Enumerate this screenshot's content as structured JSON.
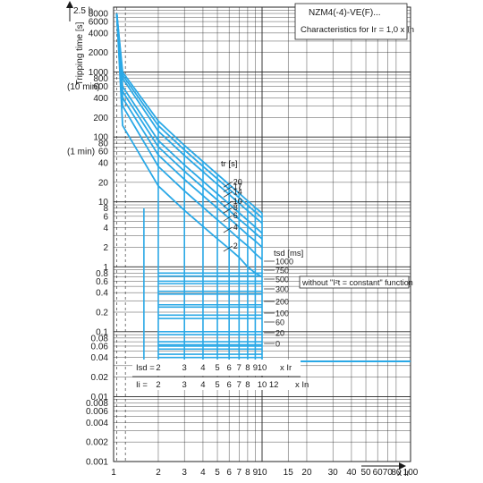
{
  "colors": {
    "curve": "#2aa8e6",
    "grid": "#222222",
    "background": "#ffffff",
    "text": "#1a1a1a"
  },
  "chart_data": {
    "type": "line",
    "title": "NZM4(-4)-VE(F)...",
    "subtitle": "Characteristics for Ir = 1,0 x In",
    "ylabel": "Tripping time [s]",
    "xlabel": "x Ir",
    "x_scale": "log",
    "y_scale": "log",
    "xlim": [
      1,
      100
    ],
    "ylim": [
      0.001,
      10000
    ],
    "grid": true,
    "x_ticks": [
      1,
      2,
      3,
      4,
      5,
      6,
      7,
      8,
      9,
      10,
      15,
      20,
      30,
      40,
      50,
      60,
      70,
      80,
      100
    ],
    "y_ticks": [
      0.001,
      0.002,
      0.004,
      0.006,
      0.008,
      0.01,
      0.02,
      0.04,
      0.06,
      0.08,
      0.1,
      0.2,
      0.4,
      0.6,
      0.8,
      1,
      2,
      4,
      6,
      8,
      10,
      20,
      40,
      60,
      80,
      100,
      200,
      400,
      600,
      800,
      1000,
      2000,
      4000,
      6000,
      8000
    ],
    "y_marks": [
      {
        "value": 9000,
        "label": "2.5 h"
      },
      {
        "value": 600,
        "label": "(10 min)"
      },
      {
        "value": 60,
        "label": "(1 min)"
      }
    ],
    "tr_label": "tr [s]",
    "tr_values": [
      20,
      17,
      14,
      10,
      8,
      6,
      4,
      2
    ],
    "overload_curves": [
      {
        "tr": 20,
        "points": [
          [
            1.05,
            8000
          ],
          [
            1.15,
            1000
          ],
          [
            2,
            176
          ],
          [
            3,
            74.1
          ],
          [
            4,
            41.7
          ],
          [
            5,
            26.7
          ],
          [
            6,
            18.5
          ],
          [
            7,
            13.6
          ],
          [
            8,
            10.4
          ],
          [
            9,
            8.2
          ],
          [
            10,
            6.7
          ]
        ]
      },
      {
        "tr": 17,
        "points": [
          [
            1.05,
            8000
          ],
          [
            1.15,
            900
          ],
          [
            2,
            150
          ],
          [
            3,
            63
          ],
          [
            4,
            35.4
          ],
          [
            5,
            22.7
          ],
          [
            6,
            15.7
          ],
          [
            7,
            11.6
          ],
          [
            8,
            8.9
          ],
          [
            9,
            7.0
          ],
          [
            10,
            5.7
          ]
        ]
      },
      {
        "tr": 14,
        "points": [
          [
            1.05,
            8000
          ],
          [
            1.15,
            800
          ],
          [
            2,
            123
          ],
          [
            3,
            51.9
          ],
          [
            4,
            29.2
          ],
          [
            5,
            18.7
          ],
          [
            6,
            13
          ],
          [
            7,
            9.5
          ],
          [
            8,
            7.3
          ],
          [
            9,
            5.8
          ],
          [
            10,
            4.7
          ]
        ]
      },
      {
        "tr": 10,
        "points": [
          [
            1.05,
            8000
          ],
          [
            1.15,
            600
          ],
          [
            2,
            88
          ],
          [
            3,
            37
          ],
          [
            4,
            20.8
          ],
          [
            5,
            13.3
          ],
          [
            6,
            9.3
          ],
          [
            7,
            6.8
          ],
          [
            8,
            5.2
          ],
          [
            9,
            4.1
          ],
          [
            10,
            3.3
          ]
        ]
      },
      {
        "tr": 8,
        "points": [
          [
            1.05,
            8000
          ],
          [
            1.15,
            500
          ],
          [
            2,
            70.4
          ],
          [
            3,
            29.6
          ],
          [
            4,
            16.7
          ],
          [
            5,
            10.7
          ],
          [
            6,
            7.4
          ],
          [
            7,
            5.4
          ],
          [
            8,
            4.2
          ],
          [
            9,
            3.3
          ],
          [
            10,
            2.7
          ]
        ]
      },
      {
        "tr": 6,
        "points": [
          [
            1.05,
            8000
          ],
          [
            1.15,
            400
          ],
          [
            2,
            52.8
          ],
          [
            3,
            22.2
          ],
          [
            4,
            12.5
          ],
          [
            5,
            8.0
          ],
          [
            6,
            5.6
          ],
          [
            7,
            4.1
          ],
          [
            8,
            3.1
          ],
          [
            9,
            2.5
          ],
          [
            10,
            2.0
          ]
        ]
      },
      {
        "tr": 4,
        "points": [
          [
            1.05,
            8000
          ],
          [
            1.15,
            300
          ],
          [
            2,
            35.2
          ],
          [
            3,
            14.8
          ],
          [
            4,
            8.3
          ],
          [
            5,
            5.3
          ],
          [
            6,
            3.7
          ],
          [
            7,
            2.7
          ],
          [
            8,
            2.1
          ],
          [
            9,
            1.6
          ],
          [
            10,
            1.3
          ]
        ]
      },
      {
        "tr": 2,
        "points": [
          [
            1.05,
            8000
          ],
          [
            1.15,
            150
          ],
          [
            2,
            17.6
          ],
          [
            3,
            7.4
          ],
          [
            4,
            4.2
          ],
          [
            5,
            2.7
          ],
          [
            6,
            1.9
          ],
          [
            7,
            1.4
          ],
          [
            8,
            1.0
          ],
          [
            9,
            0.8
          ],
          [
            10,
            0.7
          ]
        ]
      }
    ],
    "tsd_label": "tsd [ms]",
    "tsd_values": [
      1000,
      750,
      500,
      300,
      200,
      100,
      60,
      20,
      0
    ],
    "tsd_times_s": [
      1.0,
      0.75,
      0.5,
      0.3,
      0.2,
      0.1,
      0.06,
      0.02,
      0.0
    ],
    "tsd_bands": [
      {
        "label": "1000",
        "upper": 0.8,
        "lower": 0.72
      },
      {
        "label": "750",
        "upper": 0.6,
        "lower": 0.55
      },
      {
        "label": "500",
        "upper": 0.42,
        "lower": 0.38
      },
      {
        "label": "300",
        "upper": 0.26,
        "lower": 0.24
      },
      {
        "label": "200",
        "upper": 0.18,
        "lower": 0.16
      },
      {
        "label": "100",
        "upper": 0.1,
        "lower": 0.09
      },
      {
        "label": "60",
        "upper": 0.07,
        "lower": 0.063
      },
      {
        "label": "20",
        "upper": 0.06,
        "lower": 0.054
      },
      {
        "label": "0",
        "upper": 0.045,
        "lower": 0.04
      }
    ],
    "tsd_pickup_x": [
      2,
      3,
      4,
      5,
      6,
      7,
      8,
      9,
      10
    ],
    "instantaneous_floor": {
      "x_start": 1.6,
      "x_end": 100,
      "t": 0.035
    },
    "without_i2t_label": "without \"I²t = constant\" function",
    "isd_row": {
      "label": "Isd =",
      "values": [
        "2",
        "3",
        "4",
        "5",
        "6",
        "7",
        "8",
        "9",
        "10"
      ],
      "unit": "x Ir"
    },
    "ii_row": {
      "label": "Ii =",
      "values": [
        "2",
        "3",
        "4",
        "5",
        "6",
        "7",
        "8",
        "10",
        "12"
      ],
      "unit": "x In"
    }
  }
}
